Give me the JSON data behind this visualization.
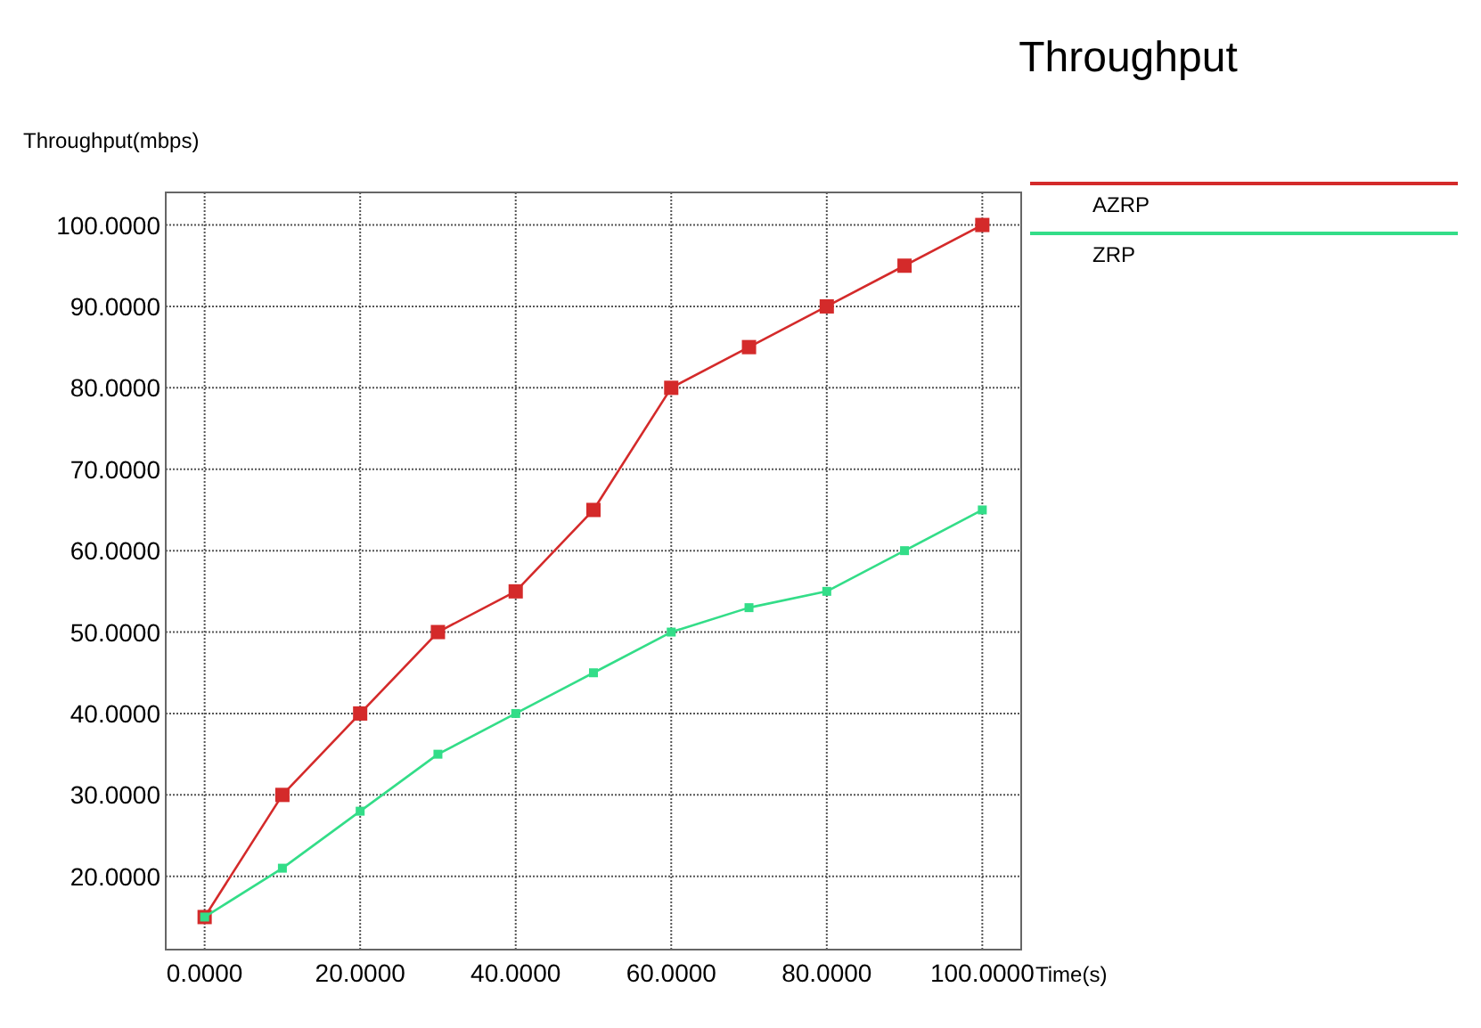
{
  "chart_data": {
    "type": "line",
    "title": "Throughput",
    "ylabel": "Throughput(mbps)",
    "xlabel": "Time(s)",
    "x": [
      0,
      10,
      20,
      30,
      40,
      50,
      60,
      70,
      80,
      90,
      100
    ],
    "series": [
      {
        "name": "AZRP",
        "color": "#d42a2a",
        "values": [
          15,
          30,
          40,
          50,
          55,
          65,
          80,
          85,
          90,
          95,
          100
        ]
      },
      {
        "name": "ZRP",
        "color": "#33dd88",
        "values": [
          15,
          21,
          28,
          35,
          40,
          45,
          50,
          53,
          55,
          60,
          65
        ]
      }
    ],
    "xlim": [
      -5,
      105
    ],
    "xticks": [
      {
        "value": 0,
        "label": "0.0000"
      },
      {
        "value": 20,
        "label": "20.0000"
      },
      {
        "value": 40,
        "label": "40.0000"
      },
      {
        "value": 60,
        "label": "60.0000"
      },
      {
        "value": 80,
        "label": "80.0000"
      },
      {
        "value": 100,
        "label": "100.0000"
      }
    ],
    "ylim": [
      11,
      104
    ],
    "yticks": [
      {
        "value": 20,
        "label": "20.0000"
      },
      {
        "value": 30,
        "label": "30.0000"
      },
      {
        "value": 40,
        "label": "40.0000"
      },
      {
        "value": 50,
        "label": "50.0000"
      },
      {
        "value": 60,
        "label": "60.0000"
      },
      {
        "value": 70,
        "label": "70.0000"
      },
      {
        "value": 80,
        "label": "80.0000"
      },
      {
        "value": 90,
        "label": "90.0000"
      },
      {
        "value": 100,
        "label": "100.0000"
      }
    ],
    "grid": true,
    "legend": "top right",
    "marker": "square",
    "line_style": "solid"
  }
}
